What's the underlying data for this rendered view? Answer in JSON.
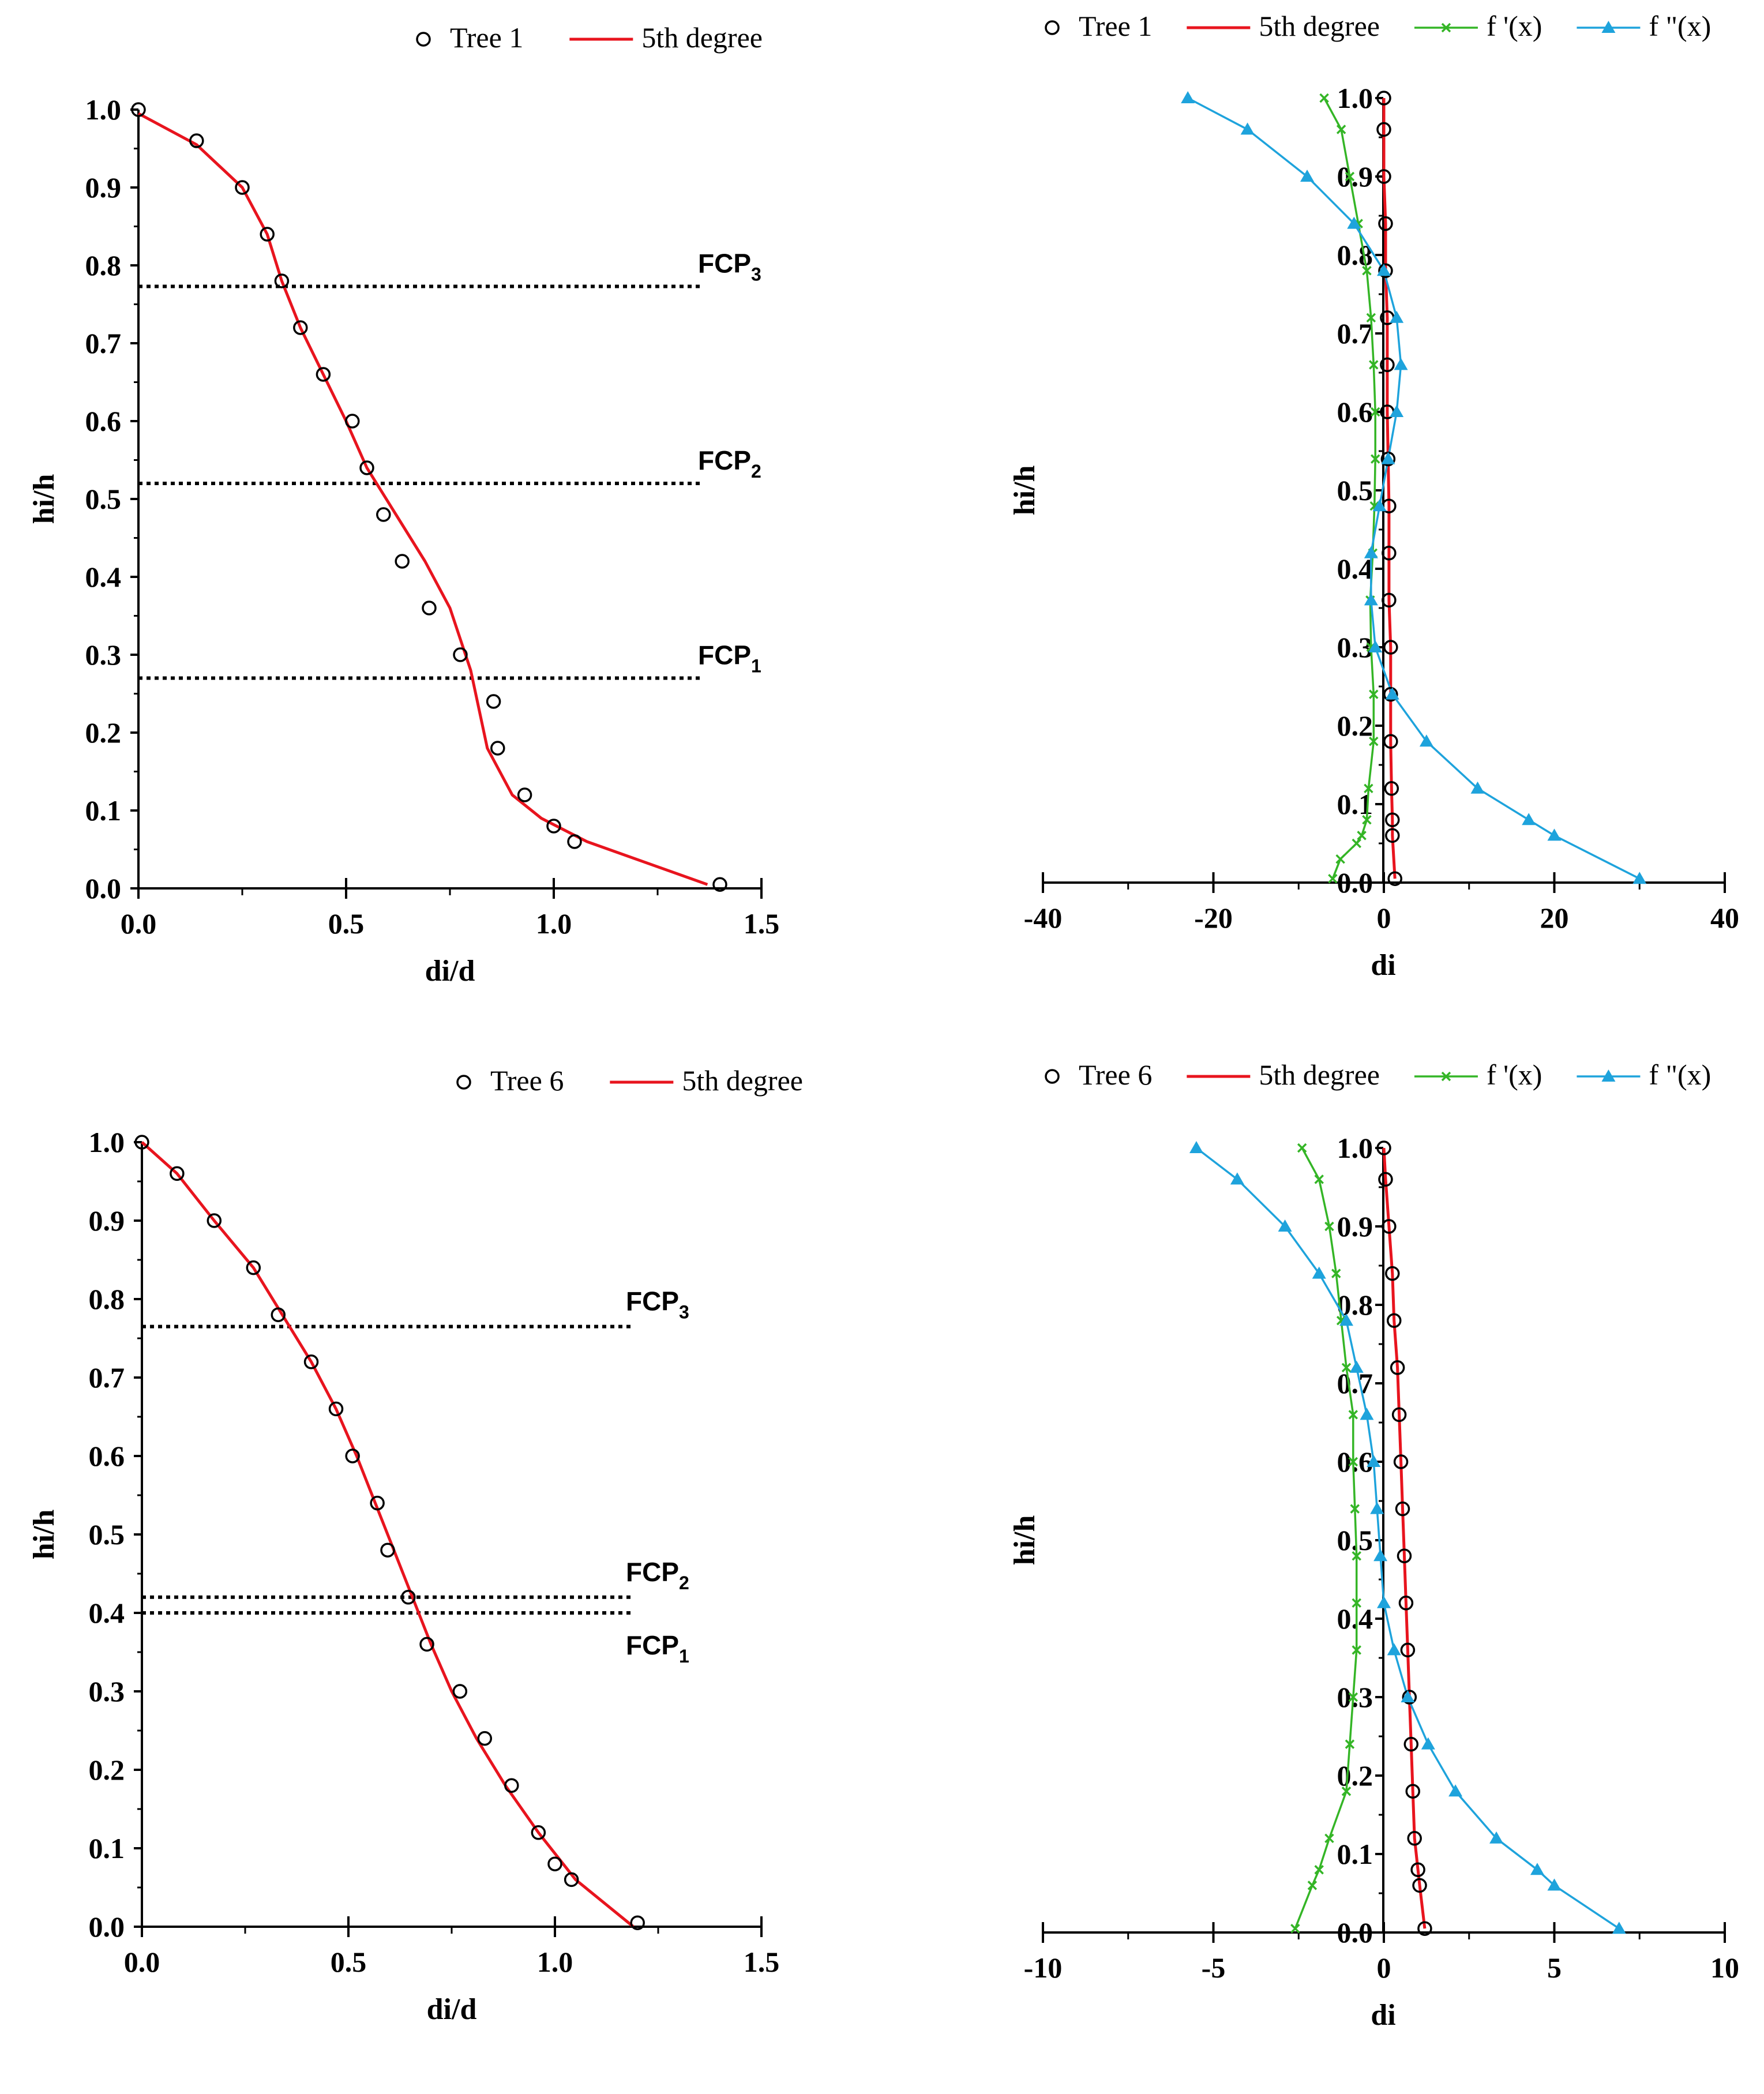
{
  "chart_data": [
    {
      "id": "p1",
      "type": "scatter",
      "xlabel": "di/d",
      "ylabel": "hi/h",
      "xlim": [
        0,
        1.5
      ],
      "ylim": [
        0,
        1.0
      ],
      "xticks": [
        "0.0",
        "0.5",
        "1.0",
        "1.5"
      ],
      "yticks": [
        "0.0",
        "0.1",
        "0.2",
        "0.3",
        "0.4",
        "0.5",
        "0.6",
        "0.7",
        "0.8",
        "0.9",
        "1.0"
      ],
      "legend": [
        "Tree 1",
        "5th degree"
      ],
      "series": [
        {
          "name": "Tree 1",
          "kind": "marker",
          "x": [
            0.0,
            0.14,
            0.25,
            0.31,
            0.345,
            0.39,
            0.445,
            0.515,
            0.55,
            0.59,
            0.635,
            0.7,
            0.775,
            0.855,
            0.865,
            0.93,
            1.0,
            1.05,
            1.4
          ],
          "y": [
            1.0,
            0.96,
            0.9,
            0.84,
            0.78,
            0.72,
            0.66,
            0.6,
            0.54,
            0.48,
            0.42,
            0.36,
            0.3,
            0.24,
            0.18,
            0.12,
            0.08,
            0.06,
            0.005
          ]
        },
        {
          "name": "5th degree",
          "kind": "line",
          "x": [
            0.0,
            0.14,
            0.25,
            0.31,
            0.345,
            0.39,
            0.445,
            0.5,
            0.55,
            0.62,
            0.69,
            0.75,
            0.8,
            0.84,
            0.9,
            0.97,
            1.08,
            1.37
          ],
          "y": [
            0.995,
            0.955,
            0.9,
            0.84,
            0.78,
            0.72,
            0.66,
            0.6,
            0.54,
            0.48,
            0.42,
            0.36,
            0.28,
            0.18,
            0.12,
            0.09,
            0.06,
            0.005
          ]
        }
      ],
      "fcp": [
        {
          "label": "FCP",
          "sub": "3",
          "y": 0.773
        },
        {
          "label": "FCP",
          "sub": "2",
          "y": 0.52
        },
        {
          "label": "FCP",
          "sub": "1",
          "y": 0.27
        }
      ]
    },
    {
      "id": "p2",
      "type": "line",
      "xlabel": "di",
      "ylabel": "hi/h",
      "xlim": [
        -40,
        40
      ],
      "ylim": [
        0,
        1.0
      ],
      "xticks": [
        "-40",
        "-20",
        "0",
        "20",
        "40"
      ],
      "yticks": [
        "0.0",
        "0.1",
        "0.2",
        "0.3",
        "0.4",
        "0.5",
        "0.6",
        "0.7",
        "0.8",
        "0.9",
        "1.0"
      ],
      "legend": [
        "Tree 1",
        "5th degree",
        "f '(x)",
        "f \"(x)"
      ],
      "series": [
        {
          "name": "Tree 1",
          "kind": "marker",
          "x": [
            0.0,
            0.0,
            0.0,
            0.2,
            0.2,
            0.4,
            0.4,
            0.4,
            0.5,
            0.6,
            0.6,
            0.6,
            0.8,
            0.8,
            0.8,
            0.9,
            1.0,
            1.0,
            1.3
          ],
          "y": [
            1.0,
            0.96,
            0.9,
            0.84,
            0.78,
            0.72,
            0.66,
            0.6,
            0.54,
            0.48,
            0.42,
            0.36,
            0.3,
            0.24,
            0.18,
            0.12,
            0.08,
            0.06,
            0.005
          ]
        },
        {
          "name": "5th degree",
          "kind": "line",
          "x": [
            0.0,
            0.0,
            0.0,
            0.2,
            0.2,
            0.4,
            0.4,
            0.4,
            0.5,
            0.6,
            0.6,
            0.6,
            0.8,
            0.8,
            0.8,
            0.9,
            1.0,
            1.0,
            1.3
          ],
          "y": [
            1.0,
            0.96,
            0.9,
            0.84,
            0.78,
            0.72,
            0.66,
            0.6,
            0.54,
            0.48,
            0.42,
            0.36,
            0.3,
            0.24,
            0.18,
            0.12,
            0.08,
            0.06,
            0.005
          ]
        },
        {
          "name": "f '(x)",
          "kind": "x-marker",
          "x": [
            -7.0,
            -5.0,
            -4.0,
            -3.0,
            -2.0,
            -1.5,
            -1.2,
            -1.0,
            -1.0,
            -1.1,
            -1.3,
            -1.6,
            -1.5,
            -1.2,
            -1.2,
            -1.8,
            -2.0,
            -2.6,
            -3.2,
            -5.1,
            -6.0
          ],
          "y": [
            1.0,
            0.96,
            0.9,
            0.84,
            0.78,
            0.72,
            0.66,
            0.6,
            0.54,
            0.48,
            0.42,
            0.36,
            0.3,
            0.24,
            0.18,
            0.12,
            0.08,
            0.06,
            0.05,
            0.03,
            0.005
          ]
        },
        {
          "name": "f \"(x)",
          "kind": "tri-marker",
          "x": [
            -23.0,
            -16.0,
            -9.0,
            -3.5,
            0.0,
            1.5,
            2.0,
            1.5,
            0.5,
            -0.5,
            -1.5,
            -1.5,
            -1.0,
            1.0,
            5.0,
            11.0,
            17.0,
            20.0,
            30.0
          ],
          "y": [
            1.0,
            0.96,
            0.9,
            0.84,
            0.78,
            0.72,
            0.66,
            0.6,
            0.54,
            0.48,
            0.42,
            0.36,
            0.3,
            0.24,
            0.18,
            0.12,
            0.08,
            0.06,
            0.005
          ]
        }
      ]
    },
    {
      "id": "p3",
      "type": "scatter",
      "xlabel": "di/d",
      "ylabel": "hi/h",
      "xlim": [
        0,
        1.5
      ],
      "ylim": [
        0,
        1.0
      ],
      "xticks": [
        "0.0",
        "0.5",
        "1.0",
        "1.5"
      ],
      "yticks": [
        "0.0",
        "0.1",
        "0.2",
        "0.3",
        "0.4",
        "0.5",
        "0.6",
        "0.7",
        "0.8",
        "0.9",
        "1.0"
      ],
      "legend": [
        "Tree 6",
        "5th degree"
      ],
      "series": [
        {
          "name": "Tree 6",
          "kind": "marker",
          "x": [
            0.0,
            0.085,
            0.175,
            0.27,
            0.33,
            0.41,
            0.47,
            0.51,
            0.57,
            0.595,
            0.645,
            0.69,
            0.77,
            0.83,
            0.895,
            0.96,
            1.0,
            1.04,
            1.2
          ],
          "y": [
            1.0,
            0.96,
            0.9,
            0.84,
            0.78,
            0.72,
            0.66,
            0.6,
            0.54,
            0.48,
            0.42,
            0.36,
            0.3,
            0.24,
            0.18,
            0.12,
            0.08,
            0.06,
            0.005
          ]
        },
        {
          "name": "5th degree",
          "kind": "line",
          "x": [
            0.0,
            0.085,
            0.175,
            0.27,
            0.34,
            0.41,
            0.47,
            0.52,
            0.565,
            0.61,
            0.655,
            0.7,
            0.75,
            0.81,
            0.88,
            0.96,
            1.05,
            1.19
          ],
          "y": [
            1.0,
            0.96,
            0.9,
            0.84,
            0.78,
            0.72,
            0.66,
            0.6,
            0.54,
            0.48,
            0.42,
            0.36,
            0.3,
            0.24,
            0.18,
            0.12,
            0.06,
            0.0
          ]
        }
      ],
      "fcp": [
        {
          "label": "FCP",
          "sub": "3",
          "y": 0.765
        },
        {
          "label": "FCP",
          "sub": "2",
          "y": 0.42
        },
        {
          "label": "FCP",
          "sub": "1",
          "y": 0.4
        }
      ]
    },
    {
      "id": "p4",
      "type": "line",
      "xlabel": "di",
      "ylabel": "hi/h",
      "xlim": [
        -10,
        10
      ],
      "ylim": [
        0,
        1.0
      ],
      "xticks": [
        "-10",
        "-5",
        "0",
        "5",
        "10"
      ],
      "yticks": [
        "0.0",
        "0.1",
        "0.2",
        "0.3",
        "0.4",
        "0.5",
        "0.6",
        "0.7",
        "0.8",
        "0.9",
        "1.0"
      ],
      "legend": [
        "Tree 6",
        "5th degree",
        "f '(x)",
        "f \"(x)"
      ],
      "series": [
        {
          "name": "Tree 6",
          "kind": "marker",
          "x": [
            0.0,
            0.05,
            0.15,
            0.25,
            0.3,
            0.4,
            0.45,
            0.5,
            0.55,
            0.6,
            0.65,
            0.7,
            0.75,
            0.8,
            0.85,
            0.9,
            1.0,
            1.05,
            1.2
          ],
          "y": [
            1.0,
            0.96,
            0.9,
            0.84,
            0.78,
            0.72,
            0.66,
            0.6,
            0.54,
            0.48,
            0.42,
            0.36,
            0.3,
            0.24,
            0.18,
            0.12,
            0.08,
            0.06,
            0.005
          ]
        },
        {
          "name": "5th degree",
          "kind": "line",
          "x": [
            0.0,
            0.05,
            0.15,
            0.25,
            0.3,
            0.4,
            0.45,
            0.5,
            0.55,
            0.6,
            0.65,
            0.7,
            0.75,
            0.8,
            0.85,
            0.9,
            1.0,
            1.05,
            1.2
          ],
          "y": [
            1.0,
            0.96,
            0.9,
            0.84,
            0.78,
            0.72,
            0.66,
            0.6,
            0.54,
            0.48,
            0.42,
            0.36,
            0.3,
            0.24,
            0.18,
            0.12,
            0.08,
            0.06,
            0.005
          ]
        },
        {
          "name": "f '(x)",
          "kind": "x-marker",
          "x": [
            -2.4,
            -1.9,
            -1.6,
            -1.4,
            -1.25,
            -1.1,
            -0.9,
            -0.9,
            -0.85,
            -0.8,
            -0.8,
            -0.8,
            -0.9,
            -1.0,
            -1.1,
            -1.6,
            -1.9,
            -2.1,
            -2.6
          ],
          "y": [
            1.0,
            0.96,
            0.9,
            0.84,
            0.78,
            0.72,
            0.66,
            0.6,
            0.54,
            0.48,
            0.42,
            0.36,
            0.3,
            0.24,
            0.18,
            0.12,
            0.08,
            0.06,
            0.005
          ]
        },
        {
          "name": "f \"(x)",
          "kind": "tri-marker",
          "x": [
            -5.5,
            -4.3,
            -2.9,
            -1.9,
            -1.1,
            -0.8,
            -0.5,
            -0.3,
            -0.2,
            -0.1,
            0.0,
            0.3,
            0.7,
            1.3,
            2.1,
            3.3,
            4.5,
            5.0,
            6.9
          ],
          "y": [
            1.0,
            0.96,
            0.9,
            0.84,
            0.78,
            0.72,
            0.66,
            0.6,
            0.54,
            0.48,
            0.42,
            0.36,
            0.3,
            0.24,
            0.18,
            0.12,
            0.08,
            0.06,
            0.005
          ]
        }
      ]
    }
  ],
  "colors": {
    "fit": "#e8141e",
    "deriv1": "#34b526",
    "deriv2": "#1ea3dc",
    "marker": "#000000",
    "fcp_line": "#000000"
  }
}
